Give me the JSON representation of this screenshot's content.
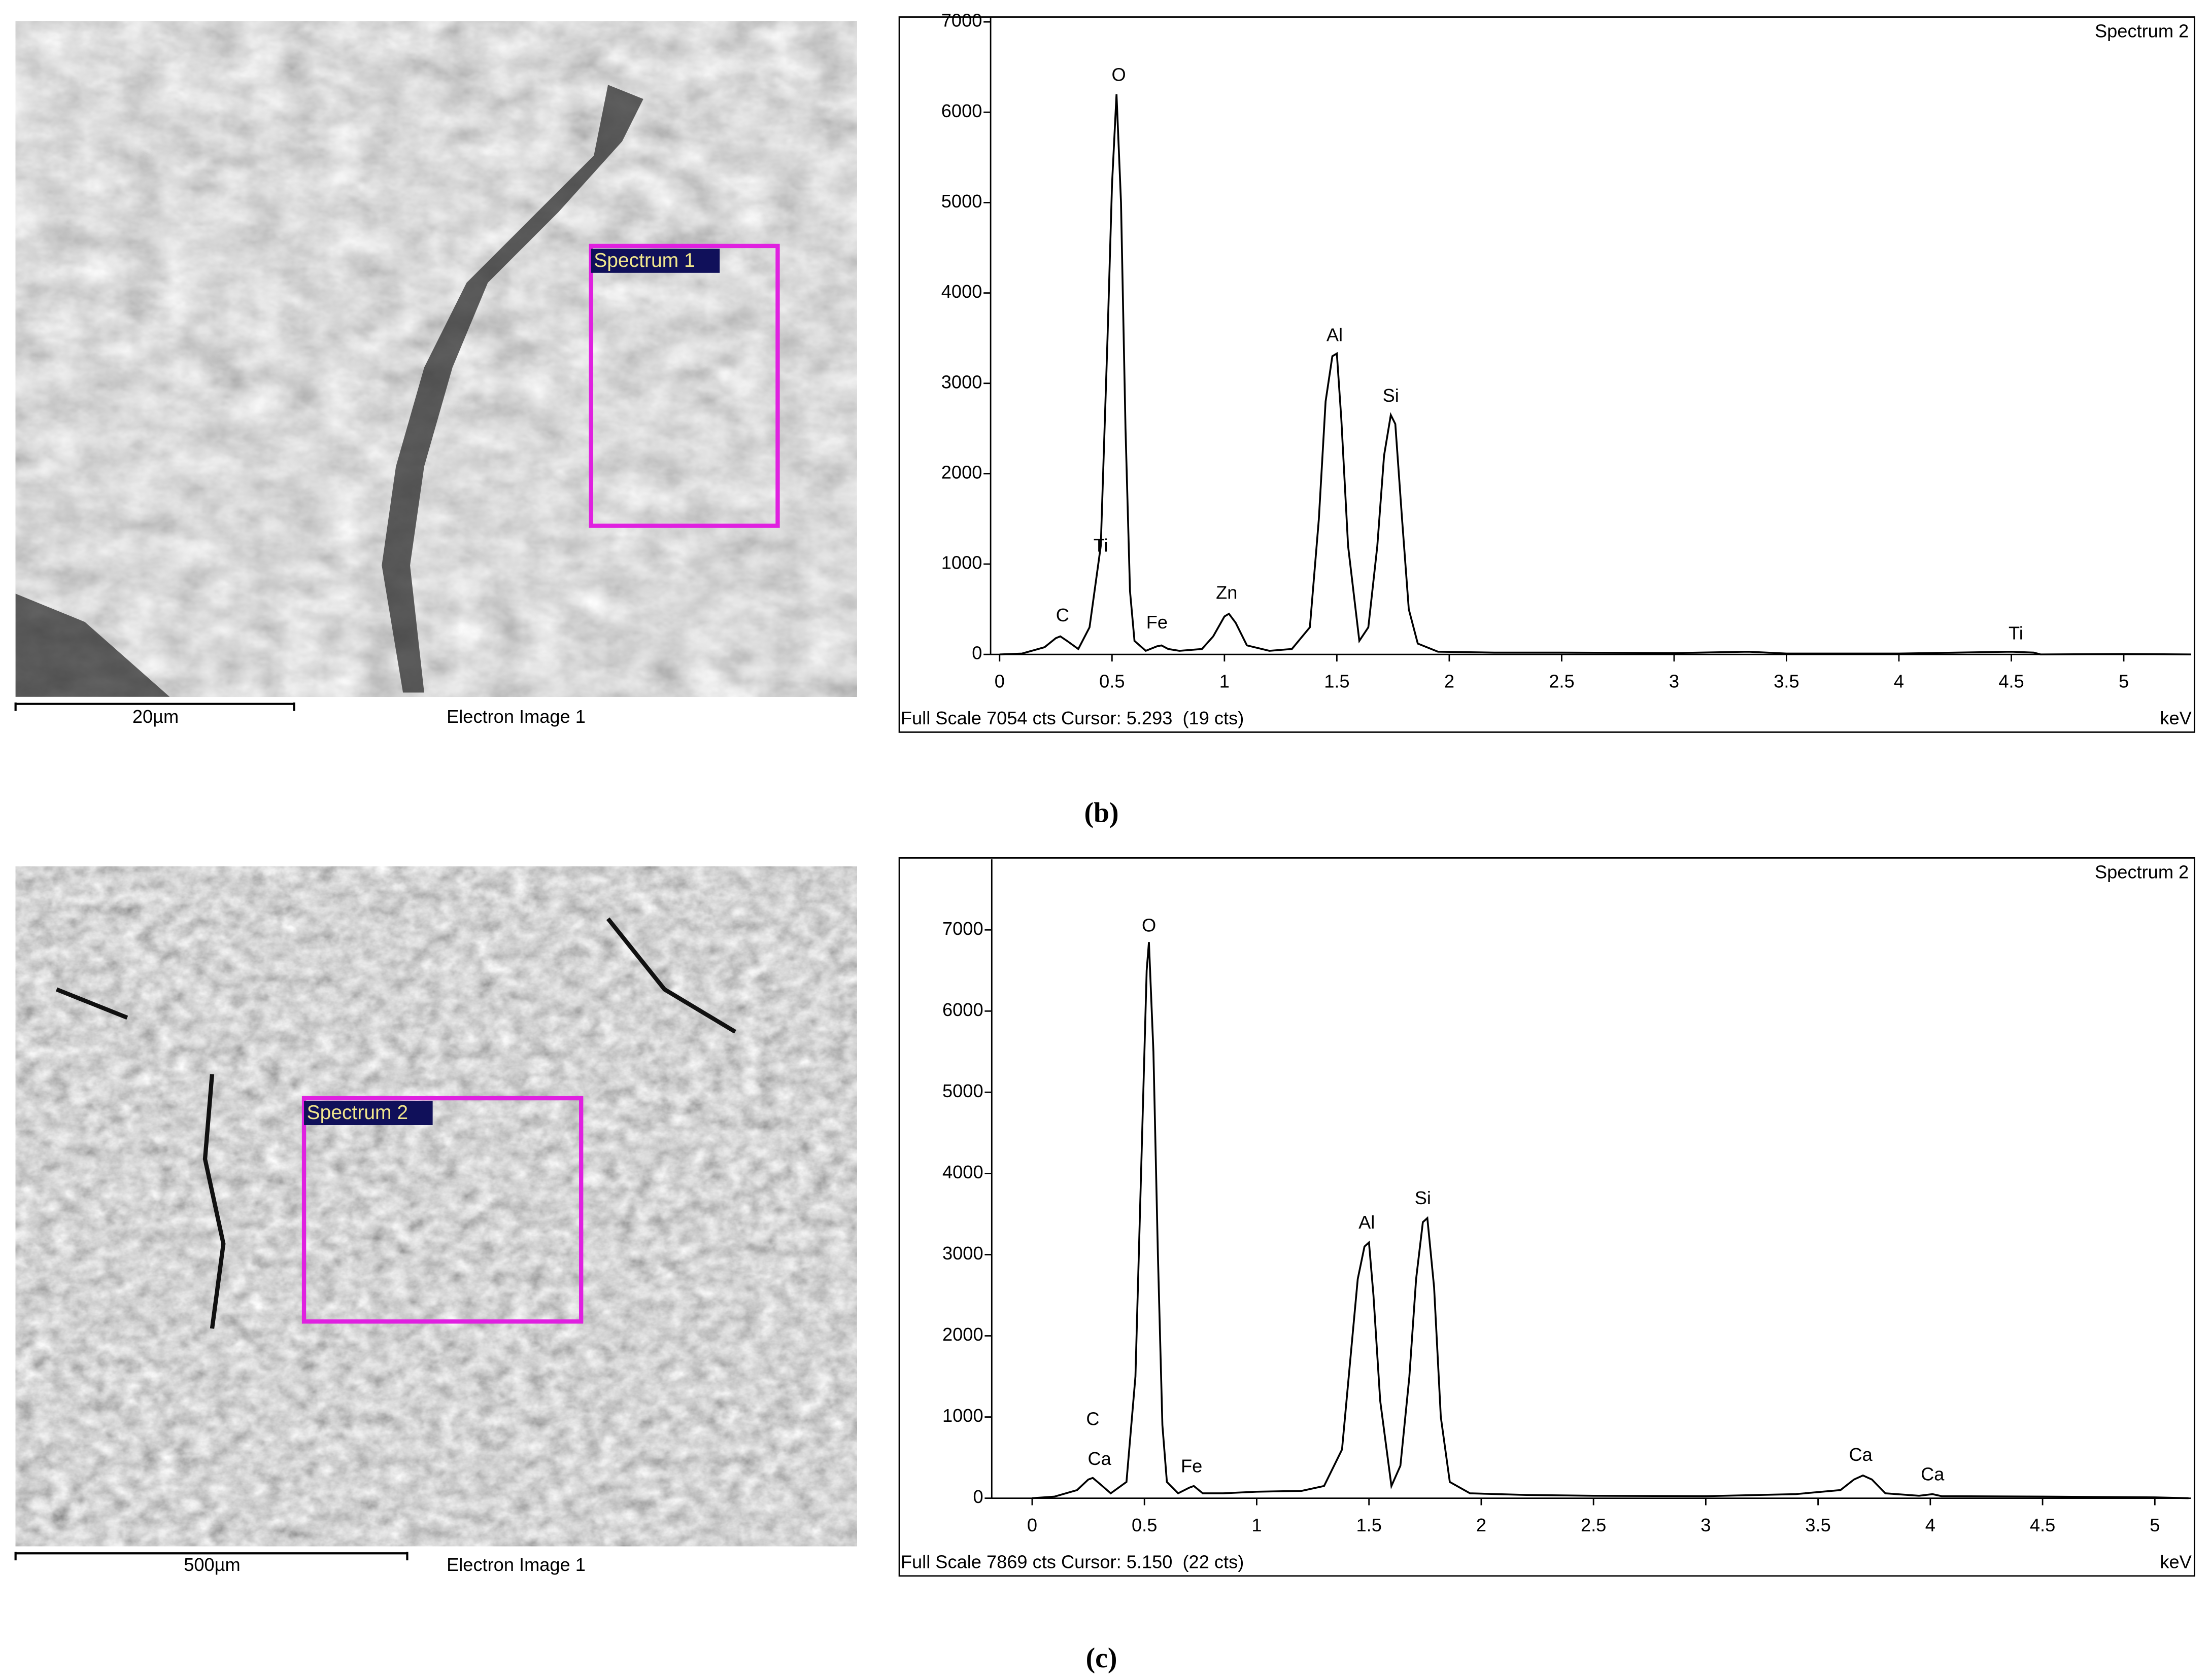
{
  "chart_data": [
    {
      "type": "line",
      "title": "Spectrum 2",
      "footer": "Full Scale 7054 cts Cursor: 5.293  (19 cts)",
      "xlabel": "keV",
      "color": "#000000",
      "xlim": [
        -0.04,
        5.3
      ],
      "ylim": [
        0,
        7054
      ],
      "xticks": [
        0,
        0.5,
        1,
        1.5,
        2,
        2.5,
        3,
        3.5,
        4,
        4.5,
        5
      ],
      "yticks": [
        0,
        1000,
        2000,
        3000,
        4000,
        5000,
        6000,
        7000
      ],
      "x": [
        0,
        0.1,
        0.2,
        0.25,
        0.27,
        0.3,
        0.35,
        0.4,
        0.45,
        0.48,
        0.5,
        0.52,
        0.54,
        0.56,
        0.58,
        0.6,
        0.65,
        0.7,
        0.72,
        0.75,
        0.8,
        0.9,
        0.95,
        1.0,
        1.02,
        1.05,
        1.1,
        1.2,
        1.3,
        1.38,
        1.42,
        1.45,
        1.48,
        1.5,
        1.52,
        1.55,
        1.6,
        1.64,
        1.68,
        1.71,
        1.74,
        1.76,
        1.79,
        1.82,
        1.86,
        1.95,
        2.2,
        2.5,
        3.0,
        3.33,
        3.5,
        4.0,
        4.5,
        4.6,
        4.63,
        5.0,
        5.3
      ],
      "values": [
        0,
        10,
        80,
        180,
        200,
        150,
        60,
        300,
        1200,
        3500,
        5200,
        6200,
        5000,
        2500,
        700,
        150,
        40,
        90,
        100,
        60,
        40,
        60,
        200,
        420,
        450,
        350,
        100,
        40,
        60,
        300,
        1500,
        2800,
        3300,
        3330,
        2600,
        1200,
        150,
        300,
        1200,
        2200,
        2650,
        2550,
        1500,
        500,
        120,
        30,
        20,
        20,
        15,
        30,
        10,
        10,
        30,
        20,
        0,
        5,
        0
      ],
      "annotations": [
        {
          "text": "C",
          "x": 0.28,
          "y": 420
        },
        {
          "text": "Ti",
          "x": 0.45,
          "y": 1190
        },
        {
          "text": "O",
          "x": 0.53,
          "y": 6400
        },
        {
          "text": "Fe",
          "x": 0.7,
          "y": 340
        },
        {
          "text": "Zn",
          "x": 1.01,
          "y": 670
        },
        {
          "text": "Al",
          "x": 1.49,
          "y": 3520
        },
        {
          "text": "Si",
          "x": 1.74,
          "y": 2850
        },
        {
          "text": "Ti",
          "x": 4.52,
          "y": 220
        }
      ]
    },
    {
      "type": "line",
      "title": "Spectrum 2",
      "footer": "Full Scale 7869 cts Cursor: 5.150  (22 cts)",
      "xlabel": "keV",
      "color": "#000000",
      "xlim": [
        -0.18,
        5.16
      ],
      "ylim": [
        0,
        7869
      ],
      "xticks": [
        0,
        0.5,
        1,
        1.5,
        2,
        2.5,
        3,
        3.5,
        4,
        4.5,
        5
      ],
      "yticks": [
        0,
        1000,
        2000,
        3000,
        4000,
        5000,
        6000,
        7000
      ],
      "x": [
        0,
        0.1,
        0.2,
        0.25,
        0.27,
        0.3,
        0.35,
        0.42,
        0.46,
        0.49,
        0.51,
        0.52,
        0.54,
        0.56,
        0.58,
        0.6,
        0.65,
        0.7,
        0.72,
        0.76,
        0.85,
        1.0,
        1.2,
        1.3,
        1.38,
        1.42,
        1.45,
        1.48,
        1.5,
        1.52,
        1.55,
        1.6,
        1.64,
        1.68,
        1.71,
        1.74,
        1.76,
        1.79,
        1.82,
        1.86,
        1.95,
        2.2,
        2.5,
        3.0,
        3.4,
        3.6,
        3.66,
        3.7,
        3.74,
        3.8,
        3.95,
        4.01,
        4.05,
        4.5,
        5.0,
        5.15
      ],
      "values": [
        0,
        20,
        100,
        230,
        250,
        180,
        60,
        200,
        1500,
        4500,
        6500,
        6850,
        5500,
        3000,
        900,
        200,
        60,
        130,
        150,
        60,
        60,
        80,
        90,
        150,
        600,
        1800,
        2700,
        3100,
        3150,
        2500,
        1200,
        150,
        400,
        1500,
        2700,
        3400,
        3450,
        2600,
        1000,
        200,
        60,
        40,
        30,
        25,
        50,
        100,
        230,
        280,
        230,
        60,
        30,
        50,
        25,
        20,
        10,
        0
      ],
      "annotations": [
        {
          "text": "C",
          "x": 0.27,
          "y": 960
        },
        {
          "text": "Ca",
          "x": 0.3,
          "y": 470
        },
        {
          "text": "O",
          "x": 0.52,
          "y": 7040
        },
        {
          "text": "Fe",
          "x": 0.71,
          "y": 380
        },
        {
          "text": "Al",
          "x": 1.49,
          "y": 3380
        },
        {
          "text": "Si",
          "x": 1.74,
          "y": 3680
        },
        {
          "text": "Ca",
          "x": 3.69,
          "y": 520
        },
        {
          "text": "Ca",
          "x": 4.01,
          "y": 280
        }
      ]
    }
  ],
  "images": [
    {
      "label": "Spectrum 1",
      "scale_bar": "20µm",
      "caption": "Electron Image 1"
    },
    {
      "label": "Spectrum 2",
      "scale_bar": "500µm",
      "caption": "Electron Image 1"
    }
  ],
  "captions": [
    "(b)",
    "(c)"
  ]
}
